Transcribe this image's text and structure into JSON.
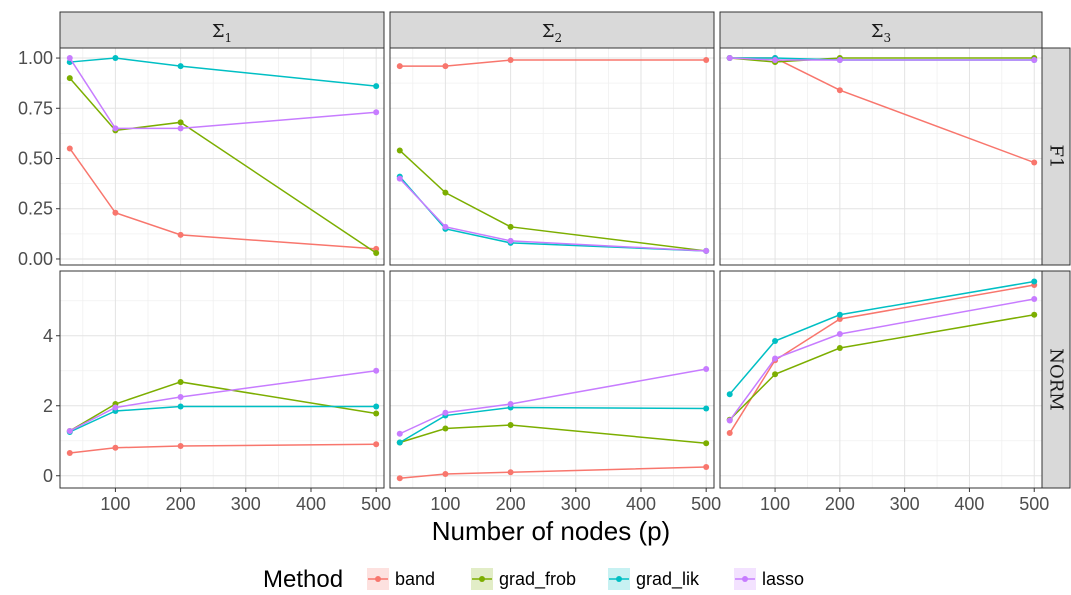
{
  "chart_data": {
    "type": "line",
    "xlabel": "Number of nodes (p)",
    "legend_title": "Method",
    "legend_position": "bottom",
    "grid": true,
    "columns": [
      {
        "label": "Σ",
        "sub": "1"
      },
      {
        "label": "Σ",
        "sub": "2"
      },
      {
        "label": "Σ",
        "sub": "3"
      }
    ],
    "rows": [
      {
        "label": "F1",
        "ylim": [
          -0.03,
          1.05
        ],
        "yticks": [
          0,
          0.25,
          0.5,
          0.75,
          1
        ],
        "yticklabels": [
          "0.00",
          "0.25",
          "0.50",
          "0.75",
          "1.00"
        ]
      },
      {
        "label": "NORM",
        "ylim": [
          -0.35,
          5.85
        ],
        "yticks": [
          0,
          2,
          4
        ],
        "yticklabels": [
          "0",
          "2",
          "4"
        ]
      }
    ],
    "xlim": [
      15,
      512
    ],
    "xticks": [
      100,
      200,
      300,
      400,
      500
    ],
    "x": [
      30,
      100,
      200,
      500
    ],
    "series_meta": [
      {
        "name": "band",
        "color": "#F8766D"
      },
      {
        "name": "grad_frob",
        "color": "#7CAE00"
      },
      {
        "name": "grad_lik",
        "color": "#00BFC4"
      },
      {
        "name": "lasso",
        "color": "#C77CFF"
      }
    ],
    "panels": [
      {
        "row": 0,
        "col": 0,
        "series": {
          "band": [
            0.55,
            0.23,
            0.12,
            0.05
          ],
          "grad_frob": [
            0.9,
            0.64,
            0.68,
            0.03
          ],
          "grad_lik": [
            0.98,
            1.0,
            0.96,
            0.86
          ],
          "lasso": [
            1.0,
            0.65,
            0.65,
            0.73
          ]
        }
      },
      {
        "row": 0,
        "col": 1,
        "series": {
          "band": [
            0.96,
            0.96,
            0.99,
            0.99
          ],
          "grad_frob": [
            0.54,
            0.33,
            0.16,
            0.04
          ],
          "grad_lik": [
            0.41,
            0.15,
            0.08,
            0.04
          ],
          "lasso": [
            0.4,
            0.16,
            0.09,
            0.04
          ]
        }
      },
      {
        "row": 0,
        "col": 2,
        "series": {
          "band": [
            1.0,
            1.0,
            0.84,
            0.48
          ],
          "grad_frob": [
            1.0,
            0.98,
            1.0,
            1.0
          ],
          "grad_lik": [
            1.0,
            1.0,
            0.99,
            0.99
          ],
          "lasso": [
            1.0,
            0.99,
            0.99,
            0.99
          ]
        }
      },
      {
        "row": 1,
        "col": 0,
        "series": {
          "band": [
            0.65,
            0.8,
            0.85,
            0.9
          ],
          "grad_frob": [
            1.28,
            2.05,
            2.68,
            1.78
          ],
          "grad_lik": [
            1.25,
            1.85,
            1.98,
            1.98
          ],
          "lasso": [
            1.28,
            1.95,
            2.25,
            3.0
          ]
        }
      },
      {
        "row": 1,
        "col": 1,
        "series": {
          "band": [
            -0.07,
            0.05,
            0.1,
            0.25
          ],
          "grad_frob": [
            0.95,
            1.35,
            1.45,
            0.93
          ],
          "grad_lik": [
            0.95,
            1.72,
            1.95,
            1.92
          ],
          "lasso": [
            1.2,
            1.8,
            2.05,
            3.05
          ]
        }
      },
      {
        "row": 1,
        "col": 2,
        "series": {
          "band": [
            1.22,
            3.3,
            4.48,
            5.45
          ],
          "grad_frob": [
            1.6,
            2.9,
            3.65,
            4.6
          ],
          "grad_lik": [
            2.33,
            3.85,
            4.6,
            5.55
          ],
          "lasso": [
            1.58,
            3.35,
            4.05,
            5.05
          ]
        }
      }
    ]
  }
}
